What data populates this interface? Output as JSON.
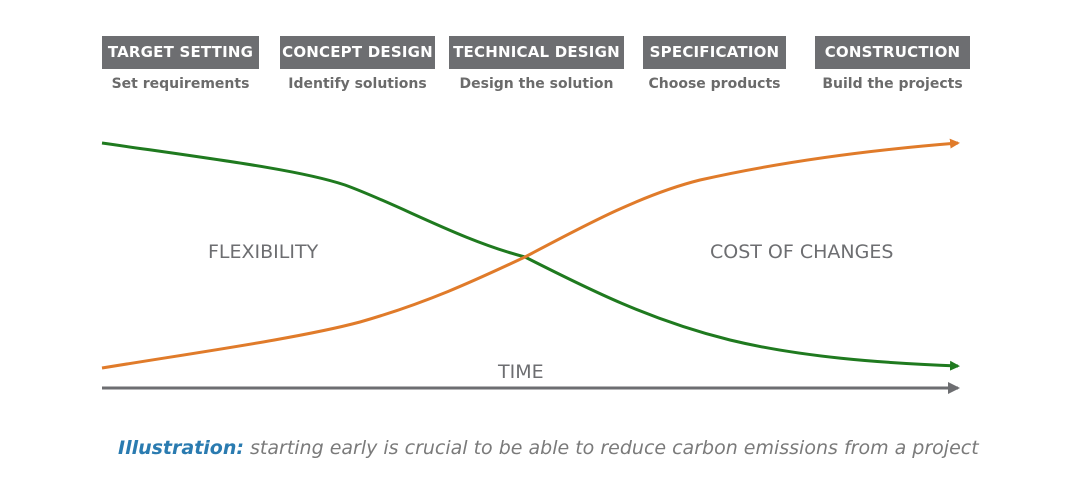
{
  "phases": [
    {
      "title": "TARGET SETTING",
      "subtitle": "Set requirements"
    },
    {
      "title": "CONCEPT DESIGN",
      "subtitle": "Identify solutions"
    },
    {
      "title": "TECHNICAL DESIGN",
      "subtitle": "Design the solution"
    },
    {
      "title": "SPECIFICATION",
      "subtitle": "Choose products"
    },
    {
      "title": "CONSTRUCTION",
      "subtitle": "Build the projects"
    }
  ],
  "curves": {
    "flexibility": {
      "label": "FLEXIBILITY"
    },
    "cost": {
      "label": "COST OF CHANGES"
    }
  },
  "axis": {
    "label": "TIME"
  },
  "caption": {
    "lead": "Illustration:",
    "text": " starting early is crucial to be able to reduce carbon emissions from a project"
  },
  "colors": {
    "header_bg": "#6d6e71",
    "flexibility": "#1f7a1f",
    "cost": "#e07b2a",
    "axis": "#6d6e71",
    "label_text": "#6d6e71",
    "caption_lead": "#2a7bb0",
    "caption_text": "#7a7a7a"
  }
}
